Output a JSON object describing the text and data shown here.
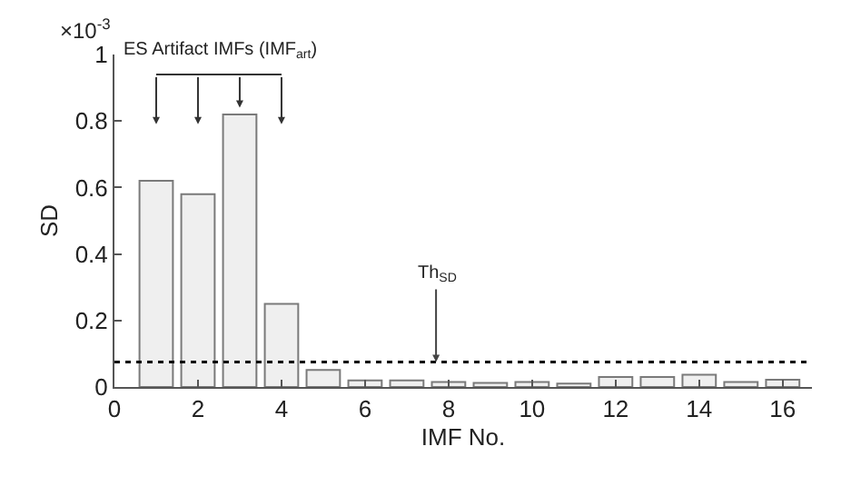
{
  "chart_data": {
    "type": "bar",
    "xlabel": "IMF No.",
    "ylabel": "SD",
    "x": [
      1,
      2,
      3,
      4,
      5,
      6,
      7,
      8,
      9,
      10,
      11,
      12,
      13,
      14,
      15,
      16
    ],
    "values": [
      0.62,
      0.58,
      0.82,
      0.25,
      0.051,
      0.02,
      0.02,
      0.015,
      0.012,
      0.015,
      0.01,
      0.03,
      0.03,
      0.037,
      0.015,
      0.022
    ],
    "color": "#efefef",
    "xlim": [
      0,
      16.7
    ],
    "xticks": [
      0,
      2,
      4,
      6,
      8,
      10,
      12,
      14,
      16
    ],
    "ylim": [
      0,
      1
    ],
    "yticks": [
      0,
      0.2,
      0.4,
      0.6,
      0.8,
      1
    ],
    "ref_lines": [
      {
        "axis": "y",
        "value": 0.075,
        "label": "Th$_{SD}$",
        "color": "#000000",
        "line_style": "dotted"
      }
    ],
    "annotations": [
      "×10$^{-3}$",
      "ES Artifact IMFs (IMF$_{art}$)"
    ],
    "grid": false
  }
}
